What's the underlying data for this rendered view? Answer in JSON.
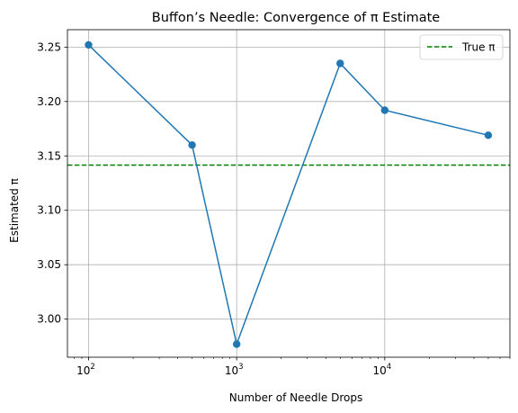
{
  "chart_data": {
    "type": "line",
    "title": "Buffon’s Needle: Convergence of π Estimate",
    "xlabel": "Number of Needle Drops",
    "ylabel": "Estimated π",
    "x_scale": "log",
    "xlim": [
      72,
      70000
    ],
    "ylim": [
      2.965,
      3.266
    ],
    "x_ticks": [
      {
        "value": 100,
        "base": "10",
        "exp": "2"
      },
      {
        "value": 1000,
        "base": "10",
        "exp": "3"
      },
      {
        "value": 10000,
        "base": "10",
        "exp": "4"
      }
    ],
    "y_ticks": [
      3.0,
      3.05,
      3.1,
      3.15,
      3.2,
      3.25
    ],
    "y_tick_labels": [
      "3.00",
      "3.05",
      "3.10",
      "3.15",
      "3.20",
      "3.25"
    ],
    "grid": true,
    "series": [
      {
        "x": [
          100,
          500,
          1000,
          5000,
          10000,
          50000
        ],
        "y": [
          3.252,
          3.16,
          2.977,
          3.235,
          3.192,
          3.169
        ],
        "color": "#1f77b4",
        "marker": "circle"
      }
    ],
    "reference_line": {
      "name": "True π",
      "y": 3.14159,
      "color": "#008000",
      "style": "dashed"
    },
    "legend": {
      "position": "top-right",
      "entries": [
        "True π"
      ]
    }
  }
}
